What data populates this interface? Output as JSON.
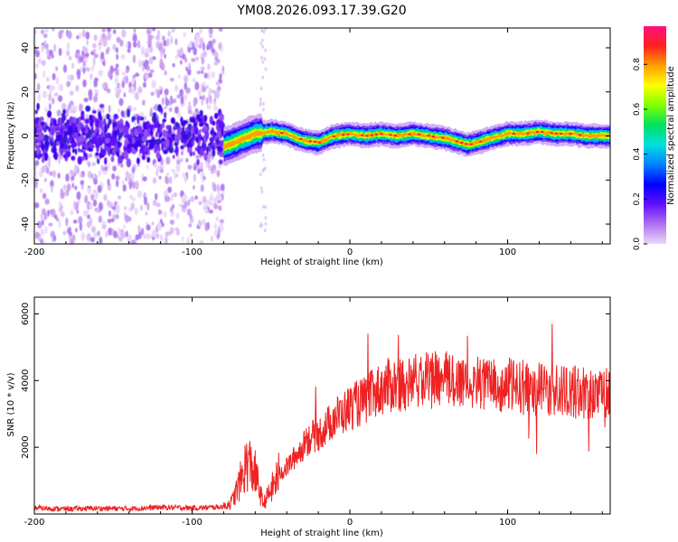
{
  "chart_data": [
    {
      "type": "heatmap",
      "title": "YM08.2026.093.17.39.G20",
      "xlabel": "Height of straight line (km)",
      "ylabel": "Frequency (Hz)",
      "xlim": [
        -200,
        165
      ],
      "ylim": [
        -49,
        49
      ],
      "x_ticks": [
        -200,
        -100,
        0,
        100
      ],
      "y_ticks": [
        -40,
        -20,
        0,
        20,
        40
      ],
      "colorbar": {
        "label": "Normalized spectral amplitude",
        "range": [
          0,
          0.97
        ],
        "ticks": [
          0.0,
          0.2,
          0.4,
          0.6,
          0.8
        ],
        "colors": [
          "#e8d8f8",
          "#b070f0",
          "#6010ff",
          "#0000ff",
          "#0080ff",
          "#00e0e0",
          "#00e060",
          "#80ff00",
          "#ffff00",
          "#ffa000",
          "#ff2020",
          "#ff1080"
        ]
      },
      "signal_trace": {
        "x": [
          -80,
          -70,
          -60,
          -50,
          -40,
          -30,
          -20,
          -10,
          0,
          10,
          20,
          30,
          40,
          50,
          60,
          70,
          75,
          80,
          90,
          100,
          110,
          120,
          130,
          140,
          150,
          165
        ],
        "y": [
          -5,
          -2,
          1,
          2,
          1,
          -2,
          -3,
          0,
          1,
          0,
          1,
          0,
          1,
          0,
          -1,
          -3,
          -4,
          -3,
          -1,
          1,
          1,
          2,
          1,
          1,
          0,
          0
        ]
      },
      "noise_region_x": [
        -200,
        -80
      ]
    },
    {
      "type": "line",
      "title": "",
      "xlabel": "Height of straight line (km)",
      "ylabel": "SNR (10 * v/v)",
      "xlim": [
        -200,
        165
      ],
      "ylim": [
        0,
        6500
      ],
      "x_ticks": [
        -200,
        -100,
        0,
        100
      ],
      "y_ticks": [
        2000,
        4000,
        6000
      ],
      "series": [
        {
          "name": "SNR",
          "color": "#ee2222",
          "x": [
            -200,
            -180,
            -160,
            -140,
            -120,
            -100,
            -90,
            -80,
            -75,
            -70,
            -65,
            -60,
            -55,
            -50,
            -45,
            -40,
            -35,
            -30,
            -25,
            -20,
            -15,
            -10,
            -5,
            0,
            5,
            10,
            15,
            20,
            25,
            30,
            40,
            50,
            60,
            70,
            80,
            90,
            100,
            110,
            120,
            130,
            140,
            150,
            160,
            165
          ],
          "values": [
            180,
            150,
            170,
            160,
            200,
            180,
            190,
            220,
            350,
            900,
            1600,
            1200,
            300,
            700,
            1200,
            1400,
            1700,
            2000,
            2300,
            2400,
            2600,
            2900,
            3000,
            3200,
            3300,
            3400,
            3600,
            3750,
            3850,
            3900,
            3950,
            4000,
            4050,
            4000,
            3950,
            3900,
            3850,
            3800,
            3750,
            3700,
            3650,
            3650,
            3600,
            3600
          ]
        }
      ]
    }
  ]
}
